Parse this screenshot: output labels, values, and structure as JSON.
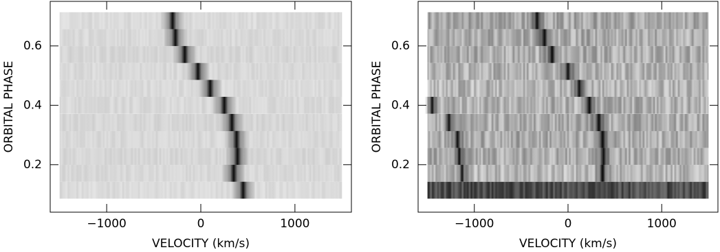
{
  "chart_data": [
    {
      "type": "trailed",
      "xlabel": "VELOCITY (km/s)",
      "ylabel": "ORBITAL PHASE",
      "xlim": [
        -1600,
        1600
      ],
      "ylim": [
        0.04,
        0.75
      ],
      "xticks": [
        {
          "value": -1000,
          "label": "−1000"
        },
        0,
        1000
      ],
      "yticks": [
        0.2,
        0.4,
        0.6
      ],
      "image_xlim": [
        -1500,
        1500
      ],
      "phases": [
        0.114,
        0.171,
        0.228,
        0.285,
        0.342,
        0.4,
        0.457,
        0.514,
        0.571,
        0.628,
        0.685
      ],
      "row_gray": [
        0.86,
        0.85,
        0.84,
        0.85,
        0.84,
        0.85,
        0.86,
        0.85,
        0.84,
        0.85,
        0.86
      ],
      "noise": 0.035,
      "series": [
        {
          "color": "#000000",
          "width": 260,
          "values": [
            450,
            350,
            390,
            380,
            330,
            250,
            100,
            -30,
            -170,
            -270,
            -300
          ]
        }
      ]
    },
    {
      "type": "trailed",
      "xlabel": "VELOCITY (km/s)",
      "ylabel": "ORBITAL PHASE",
      "xlim": [
        -1600,
        1600
      ],
      "ylim": [
        0.04,
        0.75
      ],
      "xticks": [
        {
          "value": -1000,
          "label": "−1000"
        },
        0,
        1000
      ],
      "yticks": [
        0.2,
        0.4,
        0.6
      ],
      "image_xlim": [
        -1500,
        1500
      ],
      "phases": [
        0.114,
        0.171,
        0.228,
        0.285,
        0.342,
        0.4,
        0.457,
        0.514,
        0.571,
        0.628,
        0.685
      ],
      "row_gray": [
        0.3,
        0.72,
        0.68,
        0.68,
        0.68,
        0.7,
        0.72,
        0.7,
        0.68,
        0.68,
        0.66
      ],
      "noise": 0.15,
      "series": [
        {
          "color": "#000000",
          "width": 200,
          "values": [
            null,
            370,
            380,
            370,
            330,
            230,
            120,
            0,
            -170,
            -250,
            -330
          ]
        },
        {
          "color": "#000000",
          "width": 160,
          "values": [
            null,
            -1130,
            -1160,
            -1180,
            -1270,
            -1450,
            null,
            null,
            null,
            null,
            null
          ]
        }
      ]
    }
  ]
}
